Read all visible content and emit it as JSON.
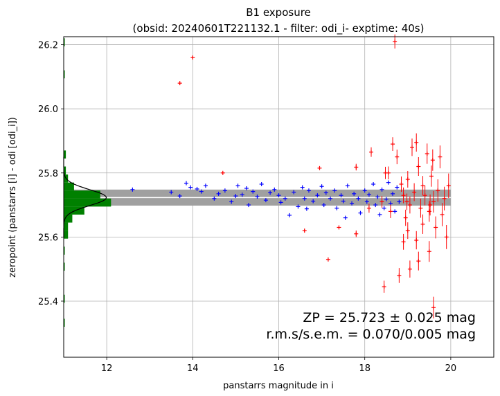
{
  "chart_data": {
    "type": "scatter",
    "title": "B1 exposure",
    "subtitle": "(obsid: 20240601T221132.1 - filter: odi_i- exptime: 40s)",
    "xlabel": "panstarrs magnitude in i",
    "ylabel": "zeropoint (panstarrs [i] - odi [odi_i])",
    "xlim": [
      11.0,
      21.0
    ],
    "ylim": [
      25.225,
      26.225
    ],
    "x_ticks": [
      "12",
      "14",
      "16",
      "18",
      "20"
    ],
    "y_ticks": [
      "25.4",
      "25.6",
      "25.8",
      "26.0",
      "26.2"
    ],
    "grid": true,
    "zp": 25.723,
    "zp_band": [
      25.698,
      25.748
    ],
    "annotation_line1": "ZP = 25.723 ± 0.025 mag",
    "annotation_line2": "r.m.s/s.e.m. = 0.070/0.005 mag",
    "colors": {
      "accepted": "#0000ff",
      "rejected": "#ff0000",
      "histogram": "#008000",
      "band": "#a0a0a0",
      "gauss": "#000000"
    },
    "series": [
      {
        "key": "accepted",
        "points": [
          [
            12.6,
            25.748
          ],
          [
            13.5,
            25.74
          ],
          [
            13.7,
            25.728
          ],
          [
            13.85,
            25.768
          ],
          [
            13.95,
            25.755
          ],
          [
            14.1,
            25.75
          ],
          [
            14.3,
            25.76
          ],
          [
            14.5,
            25.72
          ],
          [
            14.6,
            25.735
          ],
          [
            14.75,
            25.745
          ],
          [
            14.9,
            25.71
          ],
          [
            15.0,
            25.728
          ],
          [
            15.05,
            25.76
          ],
          [
            15.15,
            25.732
          ],
          [
            15.3,
            25.7
          ],
          [
            15.4,
            25.742
          ],
          [
            15.5,
            25.726
          ],
          [
            15.6,
            25.765
          ],
          [
            15.7,
            25.715
          ],
          [
            15.8,
            25.738
          ],
          [
            15.9,
            25.748
          ],
          [
            16.0,
            25.73
          ],
          [
            16.05,
            25.708
          ],
          [
            16.15,
            25.72
          ],
          [
            16.25,
            25.668
          ],
          [
            16.35,
            25.74
          ],
          [
            16.45,
            25.695
          ],
          [
            16.55,
            25.755
          ],
          [
            16.6,
            25.72
          ],
          [
            16.7,
            25.745
          ],
          [
            16.8,
            25.712
          ],
          [
            16.9,
            25.73
          ],
          [
            17.0,
            25.758
          ],
          [
            17.05,
            25.7
          ],
          [
            17.1,
            25.738
          ],
          [
            17.2,
            25.72
          ],
          [
            17.3,
            25.745
          ],
          [
            17.35,
            25.69
          ],
          [
            17.45,
            25.73
          ],
          [
            17.5,
            25.712
          ],
          [
            17.6,
            25.76
          ],
          [
            17.7,
            25.705
          ],
          [
            17.75,
            25.735
          ],
          [
            17.85,
            25.72
          ],
          [
            17.9,
            25.675
          ],
          [
            18.0,
            25.745
          ],
          [
            18.05,
            25.71
          ],
          [
            18.1,
            25.732
          ],
          [
            18.2,
            25.765
          ],
          [
            18.25,
            25.7
          ],
          [
            18.3,
            25.725
          ],
          [
            18.4,
            25.748
          ],
          [
            18.45,
            25.69
          ],
          [
            18.5,
            25.718
          ],
          [
            18.55,
            25.77
          ],
          [
            18.6,
            25.705
          ],
          [
            18.65,
            25.735
          ],
          [
            18.7,
            25.68
          ],
          [
            18.75,
            25.755
          ],
          [
            18.8,
            25.71
          ],
          [
            14.2,
            25.742
          ],
          [
            15.25,
            25.752
          ],
          [
            16.65,
            25.688
          ],
          [
            17.55,
            25.66
          ],
          [
            18.35,
            25.67
          ]
        ]
      },
      {
        "key": "rejected",
        "points": [
          [
            13.7,
            26.08
          ],
          [
            14.0,
            26.16
          ],
          [
            14.7,
            25.8
          ],
          [
            16.6,
            25.62
          ],
          [
            17.15,
            25.53
          ],
          [
            16.95,
            25.815
          ],
          [
            17.4,
            25.63
          ],
          [
            17.8,
            25.818
          ],
          [
            17.8,
            25.61
          ],
          [
            18.1,
            25.69
          ],
          [
            18.15,
            25.865
          ],
          [
            18.4,
            25.71
          ],
          [
            18.48,
            25.8
          ],
          [
            18.45,
            25.445
          ],
          [
            18.6,
            25.68
          ],
          [
            18.65,
            25.89
          ],
          [
            18.7,
            26.21
          ],
          [
            18.75,
            25.85
          ],
          [
            18.8,
            25.48
          ],
          [
            18.85,
            25.765
          ],
          [
            18.9,
            25.73
          ],
          [
            18.95,
            25.66
          ],
          [
            19.0,
            25.78
          ],
          [
            19.0,
            25.62
          ],
          [
            19.05,
            25.7
          ],
          [
            19.1,
            25.88
          ],
          [
            19.15,
            25.74
          ],
          [
            19.2,
            25.59
          ],
          [
            19.25,
            25.82
          ],
          [
            19.3,
            25.69
          ],
          [
            19.35,
            25.76
          ],
          [
            19.35,
            25.64
          ],
          [
            19.4,
            25.73
          ],
          [
            19.45,
            25.86
          ],
          [
            19.5,
            25.68
          ],
          [
            19.5,
            25.555
          ],
          [
            19.55,
            25.79
          ],
          [
            19.6,
            25.71
          ],
          [
            19.6,
            25.38
          ],
          [
            19.65,
            25.63
          ],
          [
            19.7,
            25.745
          ],
          [
            19.75,
            25.85
          ],
          [
            19.8,
            25.67
          ],
          [
            19.85,
            25.72
          ],
          [
            19.9,
            25.6
          ],
          [
            19.95,
            25.76
          ],
          [
            19.2,
            25.895
          ],
          [
            19.05,
            25.5
          ],
          [
            18.98,
            25.71
          ],
          [
            19.52,
            25.7
          ],
          [
            19.25,
            25.525
          ],
          [
            19.58,
            25.84
          ],
          [
            18.55,
            25.8
          ],
          [
            18.9,
            25.585
          ]
        ]
      }
    ],
    "histogram": [
      {
        "y0": 25.32,
        "y1": 25.345,
        "count": 0.2
      },
      {
        "y0": 25.395,
        "y1": 25.42,
        "count": 0.2
      },
      {
        "y0": 25.495,
        "y1": 25.52,
        "count": 0.2
      },
      {
        "y0": 25.545,
        "y1": 25.57,
        "count": 0.2
      },
      {
        "y0": 25.595,
        "y1": 25.62,
        "count": 1.0
      },
      {
        "y0": 25.62,
        "y1": 25.645,
        "count": 1.0
      },
      {
        "y0": 25.645,
        "y1": 25.67,
        "count": 2.0
      },
      {
        "y0": 25.67,
        "y1": 25.695,
        "count": 4.8
      },
      {
        "y0": 25.695,
        "y1": 25.72,
        "count": 11.0
      },
      {
        "y0": 25.72,
        "y1": 25.745,
        "count": 8.5
      },
      {
        "y0": 25.745,
        "y1": 25.77,
        "count": 2.4
      },
      {
        "y0": 25.77,
        "y1": 25.795,
        "count": 1.0
      },
      {
        "y0": 25.795,
        "y1": 25.82,
        "count": 0.5
      },
      {
        "y0": 25.845,
        "y1": 25.87,
        "count": 0.5
      },
      {
        "y0": 26.095,
        "y1": 26.12,
        "count": 0.2
      },
      {
        "y0": 26.195,
        "y1": 26.22,
        "count": 0.2
      }
    ],
    "histogram_max": 11.0,
    "histogram_extent_mag": 1.1,
    "gauss_sigma": 0.025
  }
}
